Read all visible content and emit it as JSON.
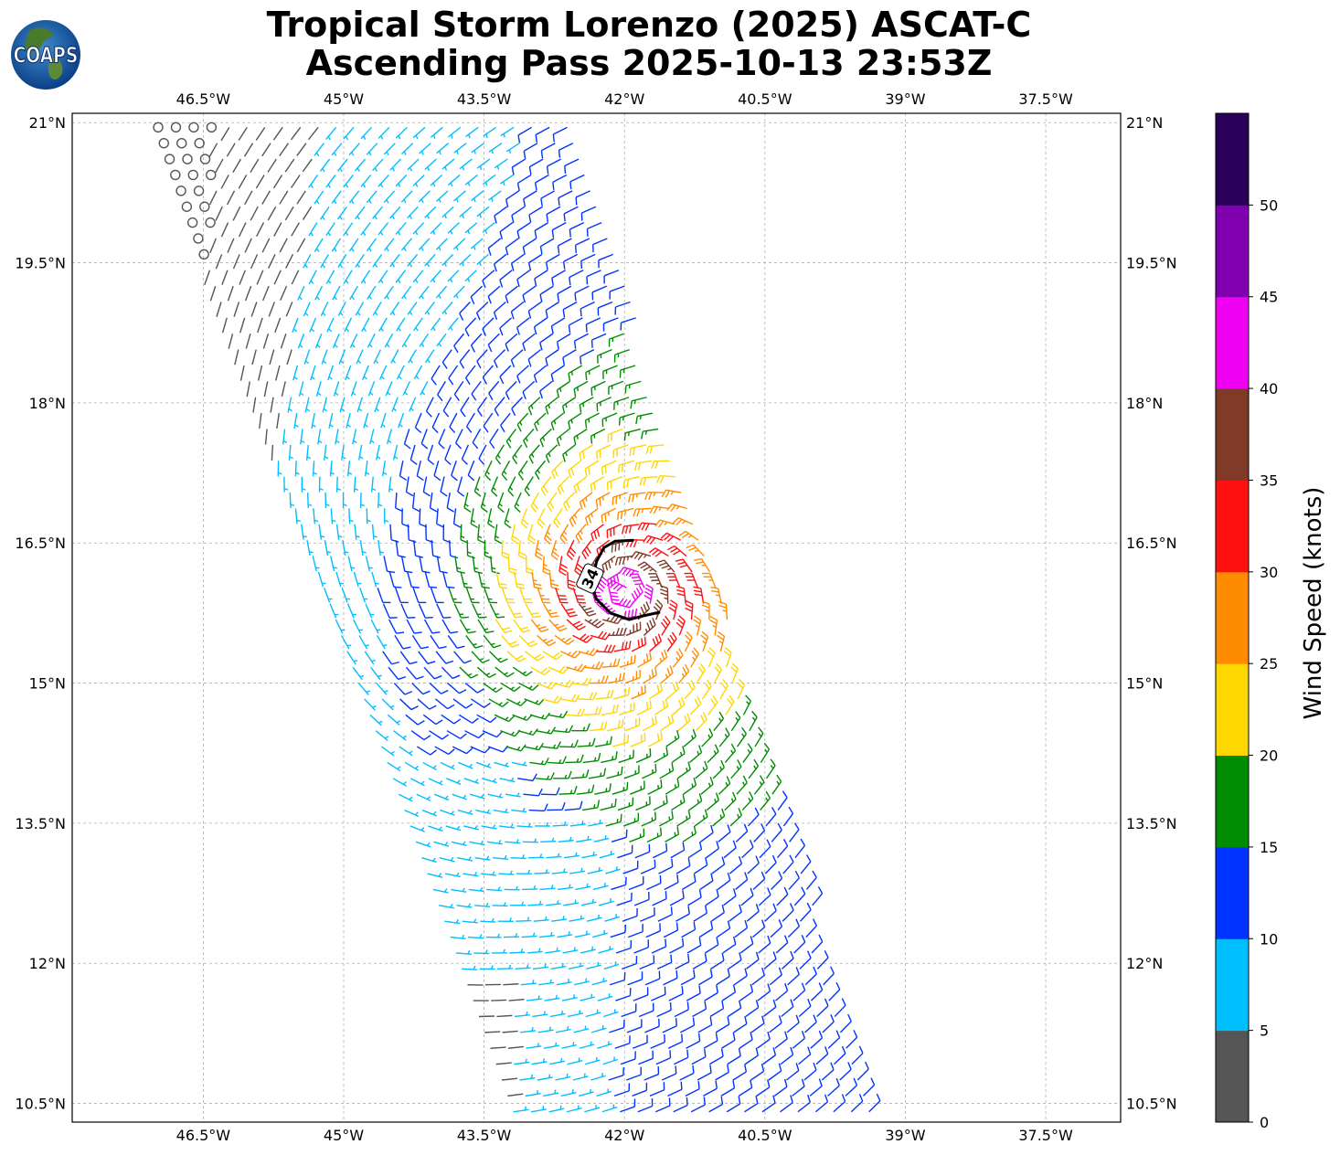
{
  "title": {
    "line1": "Tropical Storm Lorenzo (2025) ASCAT-C",
    "line2": "Ascending Pass 2025-10-13 23:53Z"
  },
  "logo": {
    "text": "COAPS",
    "icon": "globe-icon"
  },
  "map": {
    "lon_ticks": [
      "46.5°W",
      "45°W",
      "43.5°W",
      "42°W",
      "40.5°W",
      "39°W",
      "37.5°W"
    ],
    "lon_values": [
      -46.5,
      -45,
      -43.5,
      -42,
      -40.5,
      -39,
      -37.5
    ],
    "lat_ticks": [
      "21°N",
      "19.5°N",
      "18°N",
      "16.5°N",
      "15°N",
      "13.5°N",
      "12°N",
      "10.5°N"
    ],
    "lat_values": [
      21,
      19.5,
      18,
      16.5,
      15,
      13.5,
      12,
      10.5
    ],
    "lon_range": [
      -47.9,
      -36.7
    ],
    "lat_range": [
      10.3,
      21.1
    ],
    "grid": true,
    "contour_label": "34",
    "storm_center": {
      "lon": -42.0,
      "lat": 16.0
    }
  },
  "colorbar": {
    "title": "Wind Speed (knots)",
    "tick_labels": [
      "0",
      "5",
      "10",
      "15",
      "20",
      "25",
      "30",
      "35",
      "40",
      "45",
      "50"
    ],
    "bins": [
      {
        "min": 0,
        "max": 5,
        "color": "#555555"
      },
      {
        "min": 5,
        "max": 10,
        "color": "#00bfff"
      },
      {
        "min": 10,
        "max": 15,
        "color": "#0033ff"
      },
      {
        "min": 15,
        "max": 20,
        "color": "#008c00"
      },
      {
        "min": 20,
        "max": 25,
        "color": "#ffd700"
      },
      {
        "min": 25,
        "max": 30,
        "color": "#ff8c00"
      },
      {
        "min": 30,
        "max": 35,
        "color": "#ff1010"
      },
      {
        "min": 35,
        "max": 40,
        "color": "#7f3a28"
      },
      {
        "min": 40,
        "max": 45,
        "color": "#f000f0"
      },
      {
        "min": 45,
        "max": 50,
        "color": "#8000b0"
      },
      {
        "min": 50,
        "max": 55,
        "color": "#2a005a"
      }
    ]
  }
}
